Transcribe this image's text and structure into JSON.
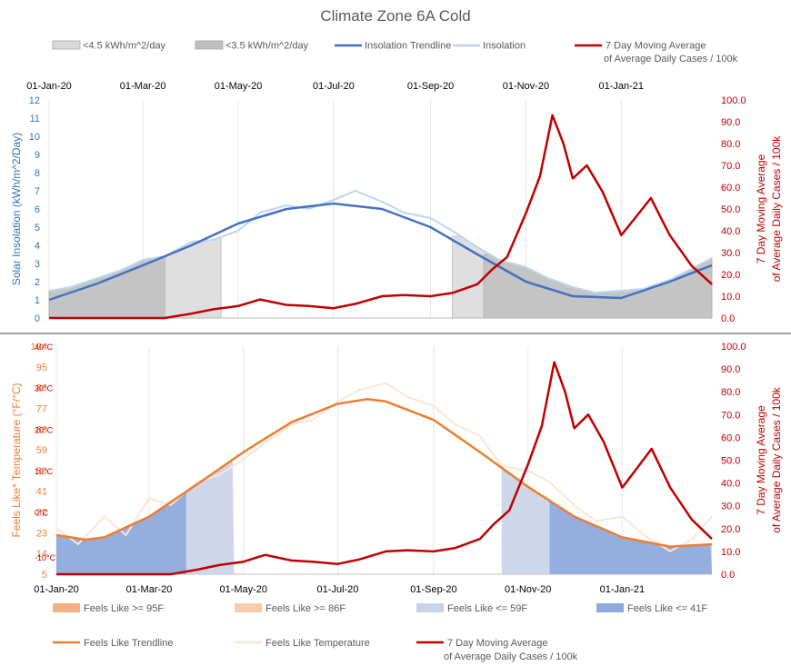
{
  "title": "Climate Zone 6A Cold",
  "colors": {
    "insolation_trend": "#4472C4",
    "insolation": "#BDD7EE",
    "cases": "#C00000",
    "shade_light": "#D9D9D9",
    "shade_dark": "#BFBFBF",
    "feels_trend": "#ED7D31",
    "feels_temp": "#FBE5D6",
    "feels_hot95": "#F4B183",
    "feels_hot86": "#F8CBAD",
    "feels_cold59": "#C9D3E8",
    "feels_cold41": "#8FAADC"
  },
  "legend_top": [
    {
      "key": "shade_light",
      "label": "<4.5 kWh/m^2/day",
      "kind": "box"
    },
    {
      "key": "shade_dark",
      "label": "<3.5 kWh/m^2/day",
      "kind": "box"
    },
    {
      "key": "insolation_trend",
      "label": "Insolation Trendline",
      "kind": "line"
    },
    {
      "key": "insolation",
      "label": "Insolation",
      "kind": "line"
    },
    {
      "key": "cases",
      "label_line1": "7 Day Moving Average",
      "label_line2": "of Average Daily Cases / 100k",
      "kind": "line"
    }
  ],
  "legend_bottom": [
    {
      "key": "feels_hot95",
      "label": "Feels Like >= 95F",
      "kind": "box"
    },
    {
      "key": "feels_hot86",
      "label": "Feels Like >= 86F",
      "kind": "box"
    },
    {
      "key": "feels_cold59",
      "label": "Feels Like <= 59F",
      "kind": "box"
    },
    {
      "key": "feels_cold41",
      "label": "Feels Like <= 41F",
      "kind": "box"
    },
    {
      "key": "feels_trend",
      "label": "Feels Like Trendline",
      "kind": "line"
    },
    {
      "key": "feels_temp",
      "label": "Feels Like Temperature",
      "kind": "line"
    },
    {
      "key": "cases",
      "label_line1": "7 Day Moving Average",
      "label_line2": "of Average Daily Cases / 100k",
      "kind": "line"
    }
  ],
  "date_ticks": [
    "01-Jan-20",
    "01-Mar-20",
    "01-May-20",
    "01-Jul-20",
    "01-Sep-20",
    "01-Nov-20",
    "01-Jan-21"
  ],
  "chart_data": [
    {
      "type": "line",
      "name": "insolation_panel",
      "ylabel": "Solar Insolation (kWh/m^2/Day)",
      "y2label_line1": "7 Day Moving Average",
      "y2label_line2": "of Average Daily Cases / 100k",
      "ylim": [
        0,
        12
      ],
      "y2lim": [
        0,
        100
      ],
      "yticks": [
        "0",
        "1",
        "2",
        "3",
        "4",
        "5",
        "6",
        "7",
        "8",
        "9",
        "10",
        "11",
        "12"
      ],
      "y2ticks": [
        "0.0",
        "10.0",
        "20.0",
        "30.0",
        "40.0",
        "50.0",
        "60.0",
        "70.0",
        "80.0",
        "90.0",
        "100.0"
      ],
      "shaded_ranges": [
        {
          "key": "shade_light",
          "from": "2020-01-01",
          "to": "2020-04-20",
          "below": 4.5
        },
        {
          "key": "shade_light",
          "from": "2020-09-15",
          "to": "2021-02-28",
          "below": 4.5
        },
        {
          "key": "shade_dark",
          "from": "2020-01-01",
          "to": "2020-03-15",
          "below": 3.5
        },
        {
          "key": "shade_dark",
          "from": "2020-10-05",
          "to": "2021-02-28",
          "below": 3.5
        }
      ],
      "insolation_trend": {
        "x": [
          "2020-01-01",
          "2020-02-01",
          "2020-03-01",
          "2020-04-01",
          "2020-05-01",
          "2020-06-01",
          "2020-07-01",
          "2020-08-01",
          "2020-09-01",
          "2020-10-01",
          "2020-11-01",
          "2020-12-01",
          "2021-01-01",
          "2021-02-01",
          "2021-02-28"
        ],
        "y": [
          1.0,
          1.9,
          2.9,
          4.0,
          5.2,
          6.0,
          6.3,
          6.0,
          5.0,
          3.5,
          2.0,
          1.2,
          1.1,
          2.0,
          2.9
        ]
      },
      "insolation": {
        "x": [
          "2020-01-01",
          "2020-01-15",
          "2020-02-01",
          "2020-02-15",
          "2020-03-01",
          "2020-03-15",
          "2020-04-01",
          "2020-04-15",
          "2020-05-01",
          "2020-05-15",
          "2020-06-01",
          "2020-06-15",
          "2020-07-01",
          "2020-07-15",
          "2020-08-01",
          "2020-08-15",
          "2020-09-01",
          "2020-09-15",
          "2020-10-01",
          "2020-10-15",
          "2020-11-01",
          "2020-11-15",
          "2020-12-01",
          "2020-12-15",
          "2021-01-01",
          "2021-01-15",
          "2021-02-01",
          "2021-02-15",
          "2021-02-28"
        ],
        "y": [
          1.5,
          1.7,
          2.2,
          2.6,
          3.2,
          3.4,
          4.2,
          4.3,
          4.8,
          5.8,
          6.2,
          6.0,
          6.5,
          7.0,
          6.4,
          5.8,
          5.5,
          4.8,
          3.9,
          3.2,
          2.8,
          2.2,
          1.7,
          1.4,
          1.5,
          1.6,
          2.1,
          2.7,
          3.3
        ]
      },
      "cases": {
        "x": [
          "2020-01-01",
          "2020-03-15",
          "2020-04-01",
          "2020-04-15",
          "2020-05-01",
          "2020-05-15",
          "2020-06-01",
          "2020-06-15",
          "2020-07-01",
          "2020-07-15",
          "2020-08-01",
          "2020-08-15",
          "2020-09-01",
          "2020-09-15",
          "2020-10-01",
          "2020-10-10",
          "2020-10-20",
          "2020-11-01",
          "2020-11-10",
          "2020-11-18",
          "2020-11-25",
          "2020-12-01",
          "2020-12-10",
          "2020-12-20",
          "2021-01-01",
          "2021-01-10",
          "2021-01-20",
          "2021-02-01",
          "2021-02-15",
          "2021-02-28"
        ],
        "y": [
          0.0,
          0.0,
          2.0,
          4.0,
          5.5,
          8.5,
          6.0,
          5.5,
          4.5,
          6.5,
          10.0,
          10.5,
          10.0,
          11.5,
          15.5,
          22.0,
          28.0,
          48.0,
          65.0,
          93.0,
          80.0,
          64.0,
          70.0,
          58.0,
          38.0,
          46.0,
          55.0,
          38.0,
          24.0,
          15.5
        ]
      }
    },
    {
      "type": "line",
      "name": "feels_like_panel",
      "ylabel": "Feels Like* Temperature (°F/°C)",
      "y2label_line1": "7 Day Moving Average",
      "y2label_line2": "of Average Daily Cases / 100k",
      "ylim": [
        5,
        104
      ],
      "y2lim": [
        0,
        100
      ],
      "yticks": [
        "5",
        "14",
        "23",
        "32",
        "41",
        "50",
        "59",
        "68",
        "77",
        "86",
        "95",
        "104"
      ],
      "celsius_ticks": [
        {
          "f": 14,
          "label": "-10°C"
        },
        {
          "f": 32,
          "label": "0°C"
        },
        {
          "f": 50,
          "label": "10°C"
        },
        {
          "f": 68,
          "label": "20°C"
        },
        {
          "f": 86,
          "label": "30°C"
        },
        {
          "f": 104,
          "label": "40°C"
        }
      ],
      "y2ticks": [
        "0.0",
        "10.0",
        "20.0",
        "30.0",
        "40.0",
        "50.0",
        "60.0",
        "70.0",
        "80.0",
        "90.0",
        "100.0"
      ],
      "shaded_ranges": [
        {
          "key": "feels_cold59",
          "from": "2020-01-01",
          "to": "2020-04-25",
          "below": 59
        },
        {
          "key": "feels_cold59",
          "from": "2020-10-15",
          "to": "2021-02-28",
          "below": 59
        },
        {
          "key": "feels_cold41",
          "from": "2020-01-01",
          "to": "2020-03-25",
          "below": 41
        },
        {
          "key": "feels_cold41",
          "from": "2020-11-15",
          "to": "2021-02-28",
          "below": 41
        }
      ],
      "feels_trend": {
        "x": [
          "2020-01-01",
          "2020-01-20",
          "2020-02-01",
          "2020-03-01",
          "2020-04-01",
          "2020-05-01",
          "2020-06-01",
          "2020-07-01",
          "2020-07-20",
          "2020-08-01",
          "2020-09-01",
          "2020-10-01",
          "2020-11-01",
          "2020-12-01",
          "2021-01-01",
          "2021-02-01",
          "2021-02-28"
        ],
        "y": [
          22,
          20,
          21,
          30,
          44,
          58,
          71,
          79,
          81,
          80,
          72,
          58,
          43,
          30,
          21,
          17,
          18
        ]
      },
      "feels_temp": {
        "x": [
          "2020-01-01",
          "2020-01-15",
          "2020-02-01",
          "2020-02-15",
          "2020-03-01",
          "2020-03-15",
          "2020-04-01",
          "2020-04-15",
          "2020-05-01",
          "2020-05-15",
          "2020-06-01",
          "2020-06-15",
          "2020-07-01",
          "2020-07-15",
          "2020-08-01",
          "2020-08-15",
          "2020-09-01",
          "2020-09-15",
          "2020-10-01",
          "2020-10-15",
          "2020-11-01",
          "2020-11-15",
          "2020-12-01",
          "2020-12-15",
          "2021-01-01",
          "2021-01-15",
          "2021-02-01",
          "2021-02-15",
          "2021-02-28"
        ],
        "y": [
          25,
          18,
          30,
          22,
          38,
          35,
          45,
          48,
          55,
          62,
          70,
          72,
          80,
          85,
          88,
          82,
          78,
          70,
          65,
          52,
          50,
          45,
          35,
          28,
          30,
          22,
          15,
          20,
          30
        ]
      },
      "cases": {
        "x": [
          "2020-01-01",
          "2020-03-15",
          "2020-04-01",
          "2020-04-15",
          "2020-05-01",
          "2020-05-15",
          "2020-06-01",
          "2020-06-15",
          "2020-07-01",
          "2020-07-15",
          "2020-08-01",
          "2020-08-15",
          "2020-09-01",
          "2020-09-15",
          "2020-10-01",
          "2020-10-10",
          "2020-10-20",
          "2020-11-01",
          "2020-11-10",
          "2020-11-18",
          "2020-11-25",
          "2020-12-01",
          "2020-12-10",
          "2020-12-20",
          "2021-01-01",
          "2021-01-10",
          "2021-01-20",
          "2021-02-01",
          "2021-02-15",
          "2021-02-28"
        ],
        "y": [
          0.0,
          0.0,
          2.0,
          4.0,
          5.5,
          8.5,
          6.0,
          5.5,
          4.5,
          6.5,
          10.0,
          10.5,
          10.0,
          11.5,
          15.5,
          22.0,
          28.0,
          48.0,
          65.0,
          93.0,
          80.0,
          64.0,
          70.0,
          58.0,
          38.0,
          46.0,
          55.0,
          38.0,
          24.0,
          15.5
        ]
      }
    }
  ]
}
